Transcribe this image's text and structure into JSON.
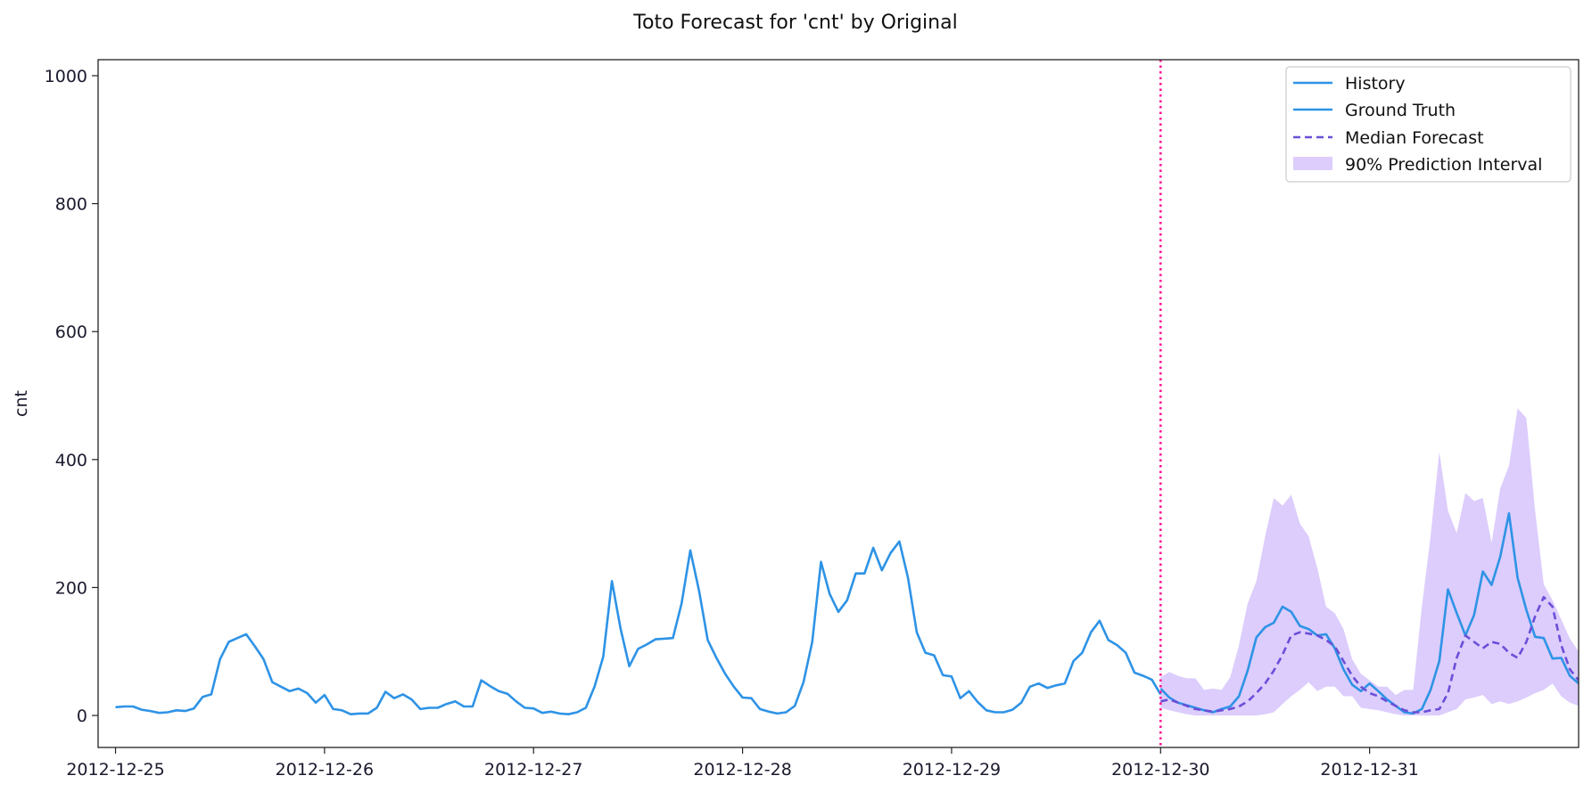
{
  "chart_data": {
    "type": "line",
    "title": "Toto Forecast for 'cnt' by Original",
    "xlabel": "",
    "ylabel": "cnt",
    "x_start": "2012-12-25 00:00",
    "x_step": "1 hour",
    "xlim": [
      "2012-12-24 22:00",
      "2013-01-01 00:00"
    ],
    "ylim": [
      -50,
      1025
    ],
    "yticks": [
      0,
      200,
      400,
      600,
      800,
      1000
    ],
    "xtick_labels": [
      "2012-12-25",
      "2012-12-26",
      "2012-12-27",
      "2012-12-28",
      "2012-12-29",
      "2012-12-30",
      "2012-12-31"
    ],
    "forecast_start": "2012-12-30 00:00",
    "grid": false,
    "legend_position": "upper right",
    "colors": {
      "history": "#2E93E6",
      "ground_truth": "#2E93E6",
      "median": "#6A4FD8",
      "interval": "#C9B2FA",
      "forecast_line": "#FF1493"
    },
    "series": [
      {
        "name": "History",
        "style": "solid",
        "offset": 0,
        "values": [
          13,
          14,
          14,
          9,
          7,
          4,
          5,
          8,
          7,
          11,
          29,
          33,
          88,
          115,
          121,
          127,
          108,
          88,
          52,
          45,
          38,
          42,
          35,
          20,
          32,
          10,
          8,
          2,
          3,
          3,
          12,
          37,
          27,
          33,
          25,
          10,
          12,
          12,
          18,
          22,
          14,
          14,
          55,
          46,
          38,
          34,
          22,
          12,
          11,
          4,
          6,
          3,
          2,
          5,
          12,
          45,
          92,
          210,
          135,
          77,
          104,
          111,
          119,
          120,
          121,
          175,
          258,
          195,
          118,
          90,
          65,
          45,
          28,
          27,
          10,
          6,
          3,
          5,
          15,
          52,
          115,
          240,
          190,
          162,
          180,
          222,
          222,
          262,
          227,
          254,
          272,
          215,
          130,
          98,
          94,
          63,
          61,
          27,
          38,
          21,
          8,
          5,
          5,
          9,
          20,
          45,
          50,
          43,
          47,
          50,
          85,
          98,
          130,
          148,
          118,
          110,
          98,
          67,
          62,
          56,
          33
        ]
      },
      {
        "name": "Ground Truth",
        "style": "solid",
        "offset": 120,
        "values": [
          42,
          28,
          20,
          16,
          12,
          8,
          5,
          10,
          14,
          30,
          70,
          122,
          138,
          145,
          170,
          162,
          140,
          135,
          125,
          127,
          105,
          72,
          48,
          38,
          50,
          38,
          25,
          15,
          5,
          3,
          10,
          40,
          85,
          197,
          160,
          125,
          157,
          225,
          204,
          248,
          316,
          215,
          165,
          123,
          121,
          89,
          90,
          62,
          50
        ]
      },
      {
        "name": "Median Forecast",
        "style": "dashed",
        "offset": 120,
        "values": [
          22,
          25,
          20,
          15,
          10,
          8,
          6,
          8,
          10,
          14,
          22,
          35,
          50,
          70,
          95,
          125,
          130,
          128,
          125,
          118,
          108,
          85,
          62,
          45,
          35,
          30,
          22,
          15,
          8,
          5,
          5,
          8,
          10,
          35,
          90,
          125,
          115,
          105,
          115,
          112,
          98,
          90,
          115,
          155,
          185,
          170,
          110,
          72,
          55
        ]
      },
      {
        "name": "90% Prediction Interval",
        "style": "band",
        "offset": 120,
        "lower": [
          12,
          8,
          5,
          2,
          0,
          0,
          0,
          0,
          0,
          0,
          0,
          0,
          2,
          5,
          18,
          30,
          40,
          52,
          38,
          45,
          45,
          30,
          30,
          12,
          10,
          8,
          5,
          2,
          0,
          0,
          0,
          0,
          0,
          5,
          10,
          25,
          28,
          32,
          18,
          22,
          18,
          22,
          28,
          35,
          40,
          50,
          30,
          20,
          15
        ],
        "upper": [
          60,
          68,
          62,
          58,
          58,
          40,
          42,
          40,
          60,
          110,
          175,
          210,
          280,
          340,
          328,
          345,
          300,
          280,
          230,
          170,
          160,
          135,
          88,
          65,
          55,
          45,
          45,
          32,
          40,
          40,
          170,
          280,
          412,
          320,
          285,
          348,
          335,
          340,
          270,
          355,
          390,
          480,
          465,
          320,
          205,
          180,
          150,
          120,
          100
        ]
      }
    ]
  }
}
